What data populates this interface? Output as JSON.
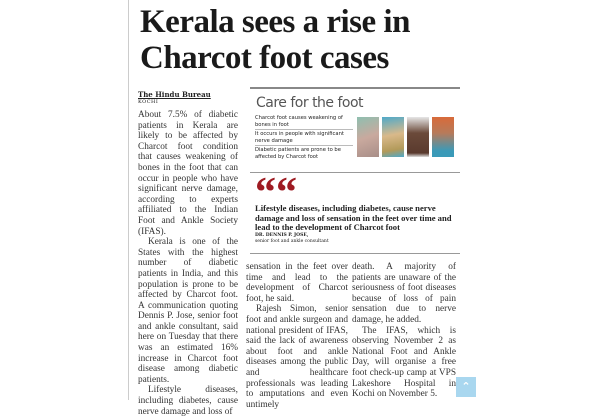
{
  "headline": "Kerala sees a rise in Charcot foot cases",
  "byline": "The Hindu Bureau",
  "dateline": "KOCHI",
  "col1": [
    "About 7.5% of diabetic patients in Kerala are likely to be affected by Charcot foot condition that causes weakening of bones in the foot that can occur in people who have significant nerve damage, according to experts affiliated to the Indian Foot and Ankle Society (IFAS).",
    "Kerala is one of the States with the highest number of diabetic patients in India, and this population is prone to be affected by Charcot foot. A communication quoting Dennis P. Jose, senior foot and ankle consultant, said here on Tuesday that there was an estimated 16% increase in Charcot foot disease among diabetic patients.",
    "Lifestyle diseases, including diabetes, cause nerve damage and loss of"
  ],
  "col2": [
    "sensation in the feet over time and lead to the development of Charcot foot, he said.",
    "Rajesh Simon, senior foot and ankle surgeon and national president of IFAS, said the lack of awareness about foot and ankle diseases among the public and healthcare professionals was leading to amputations and even untimely"
  ],
  "col3": [
    "death. A majority of patients are unaware of the seriousness of foot diseases because of loss of pain sensation due to nerve damage, he added.",
    "The IFAS, which is observing November 2 as National Foot and Ankle Day, will organise a free foot check-up camp at VPS Lakeshore Hospital in Kochi on November 5."
  ],
  "box": {
    "title": "Care for the foot",
    "facts": [
      "Charcot foot causes weakening of bones in foot",
      "It occurs in people with significant nerve damage",
      "Diabetic patients are prone to be affected by Charcot foot"
    ],
    "quote_icon": "quote-mark-icon",
    "quote": "Lifestyle diseases, including diabetes, cause nerve damage and loss of sensation in the feet over time and lead to the development of Charcot foot",
    "quote_name": "DR. DENNIS P. JOSE,",
    "quote_role": "senior foot and ankle consultant"
  },
  "colors": {
    "quote_accent": "#9e1b22",
    "scroll_button": "#a9d7ef"
  },
  "scroll_top_icon": "chevron-up-icon"
}
